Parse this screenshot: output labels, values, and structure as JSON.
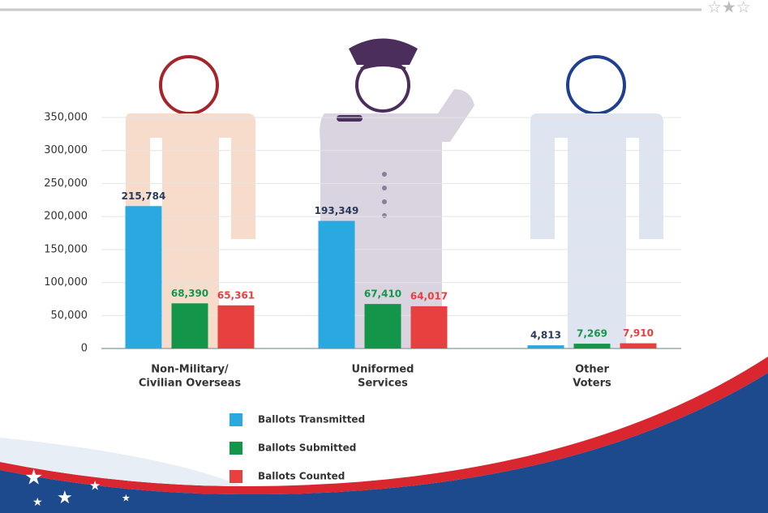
{
  "chart_data": {
    "type": "bar",
    "categories": [
      [
        "Non-Military/",
        "Civilian Overseas"
      ],
      [
        "Uniformed",
        "Services"
      ],
      [
        "Other",
        "Voters"
      ]
    ],
    "series": [
      {
        "name": "Ballots Transmitted",
        "color": "#29a9e0",
        "label_color": "#2b3a5a",
        "values": [
          215784,
          193349,
          4813
        ],
        "value_labels": [
          "215,784",
          "193,349",
          "4,813"
        ]
      },
      {
        "name": "Ballots Submitted",
        "color": "#14964a",
        "label_color": "#14964a",
        "values": [
          68390,
          67410,
          7269
        ],
        "value_labels": [
          "68,390",
          "67,410",
          "7,269"
        ]
      },
      {
        "name": "Ballots Counted",
        "color": "#e8403f",
        "label_color": "#e8403f",
        "values": [
          65361,
          64017,
          7910
        ],
        "value_labels": [
          "65,361",
          "64,017",
          "7,910"
        ]
      }
    ],
    "ylim": [
      0,
      350000
    ],
    "yticks": [
      0,
      {
        "value": 50000,
        "label": "50,000"
      },
      {
        "value": 100000,
        "label": "100,000"
      },
      {
        "value": 150000,
        "label": "150,000"
      },
      {
        "value": 200000,
        "label": "200,000"
      },
      {
        "value": 250000,
        "label": "250,000"
      },
      {
        "value": 300000,
        "label": "300,000"
      },
      {
        "value": 350000,
        "label": "350,000"
      }
    ],
    "grid": true,
    "legend": "bottom"
  }
}
